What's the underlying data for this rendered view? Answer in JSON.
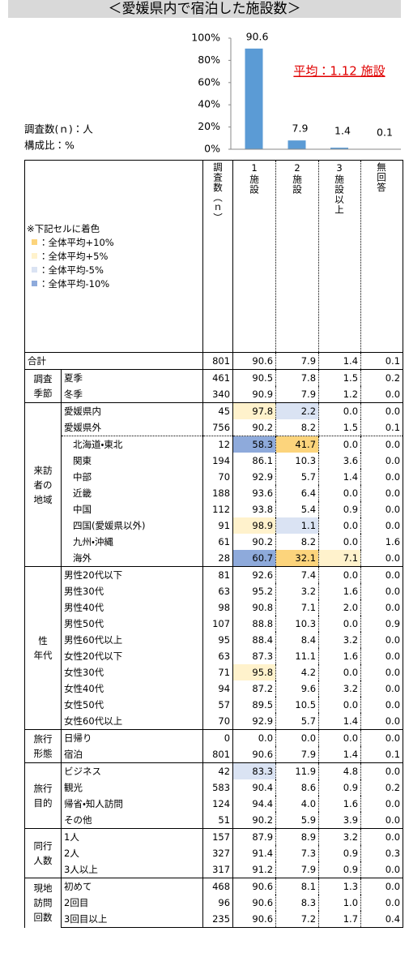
{
  "title": "＜愛媛県内で宿泊した施設数＞",
  "chart": {
    "type": "bar",
    "n_label": "調査数(ｎ)：人",
    "pct_label": "構成比：%",
    "annotation": "平均：1.12 施設",
    "values": [
      90.6,
      7.9,
      1.4,
      0.1
    ],
    "color": "#5b9bd5",
    "ylim": [
      0,
      100
    ],
    "yticks": [
      {
        "value": 0,
        "label": "0%"
      },
      {
        "value": 20,
        "label": "20%"
      },
      {
        "value": 40,
        "label": "40%"
      },
      {
        "value": 60,
        "label": "60%"
      },
      {
        "value": 80,
        "label": "80%"
      },
      {
        "value": 100,
        "label": "100%"
      }
    ]
  },
  "legend": {
    "note": "※下記セルに着色",
    "items": [
      {
        "label": "：全体平均+10%",
        "color": "#fcd47c"
      },
      {
        "label": "：全体平均+5%",
        "color": "#fff2cc"
      },
      {
        "label": "：全体平均-5%",
        "color": "#dae3f3"
      },
      {
        "label": "：全体平均-10%",
        "color": "#8eaadb"
      }
    ]
  },
  "table": {
    "columns": [
      "調査数（ｎ）",
      "1施設",
      "2施設",
      "3施設以上",
      "無回答"
    ],
    "groups": [
      {
        "label": "合計",
        "rows": [
          {
            "values": [
              "801",
              "90.6",
              "7.9",
              "1.4",
              "0.1"
            ]
          }
        ]
      },
      {
        "label": "調査\n季節",
        "rows": [
          {
            "label": "夏季",
            "values": [
              "461",
              "90.5",
              "7.8",
              "1.5",
              "0.2"
            ]
          },
          {
            "label": "冬季",
            "values": [
              "340",
              "90.9",
              "7.9",
              "1.2",
              "0.0"
            ]
          }
        ]
      },
      {
        "label": "来訪\n者の\n地域",
        "rows": [
          {
            "label": "愛媛県内",
            "values": [
              "45",
              "97.8",
              "2.2",
              "0.0",
              "0.0"
            ],
            "shade": [
              null,
              1,
              2,
              null,
              null
            ]
          },
          {
            "label": "愛媛県外",
            "values": [
              "756",
              "90.2",
              "8.2",
              "1.5",
              "0.1"
            ]
          },
          {
            "label": "北海道・東北",
            "indent": true,
            "values": [
              "12",
              "58.3",
              "41.7",
              "0.0",
              "0.0"
            ],
            "shade": [
              null,
              3,
              0,
              null,
              null
            ]
          },
          {
            "label": "関東",
            "indent": true,
            "values": [
              "194",
              "86.1",
              "10.3",
              "3.6",
              "0.0"
            ]
          },
          {
            "label": "中部",
            "indent": true,
            "values": [
              "70",
              "92.9",
              "5.7",
              "1.4",
              "0.0"
            ]
          },
          {
            "label": "近畿",
            "indent": true,
            "values": [
              "188",
              "93.6",
              "6.4",
              "0.0",
              "0.0"
            ]
          },
          {
            "label": "中国",
            "indent": true,
            "values": [
              "112",
              "93.8",
              "5.4",
              "0.9",
              "0.0"
            ]
          },
          {
            "label": "四国(愛媛県以外)",
            "indent": true,
            "values": [
              "91",
              "98.9",
              "1.1",
              "0.0",
              "0.0"
            ],
            "shade": [
              null,
              1,
              2,
              null,
              null
            ]
          },
          {
            "label": "九州・沖縄",
            "indent": true,
            "values": [
              "61",
              "90.2",
              "8.2",
              "0.0",
              "1.6"
            ]
          },
          {
            "label": "海外",
            "indent": true,
            "values": [
              "28",
              "60.7",
              "32.1",
              "7.1",
              "0.0"
            ],
            "shade": [
              null,
              3,
              0,
              1,
              null
            ]
          }
        ]
      },
      {
        "label": "性\n年代",
        "rows": [
          {
            "label": "男性20代以下",
            "values": [
              "81",
              "92.6",
              "7.4",
              "0.0",
              "0.0"
            ]
          },
          {
            "label": "男性30代",
            "values": [
              "63",
              "95.2",
              "3.2",
              "1.6",
              "0.0"
            ]
          },
          {
            "label": "男性40代",
            "values": [
              "98",
              "90.8",
              "7.1",
              "2.0",
              "0.0"
            ]
          },
          {
            "label": "男性50代",
            "values": [
              "107",
              "88.8",
              "10.3",
              "0.0",
              "0.9"
            ]
          },
          {
            "label": "男性60代以上",
            "values": [
              "95",
              "88.4",
              "8.4",
              "3.2",
              "0.0"
            ]
          },
          {
            "label": "女性20代以下",
            "values": [
              "63",
              "87.3",
              "11.1",
              "1.6",
              "0.0"
            ]
          },
          {
            "label": "女性30代",
            "values": [
              "71",
              "95.8",
              "4.2",
              "0.0",
              "0.0"
            ],
            "shade": [
              null,
              1,
              null,
              null,
              null
            ]
          },
          {
            "label": "女性40代",
            "values": [
              "94",
              "87.2",
              "9.6",
              "3.2",
              "0.0"
            ]
          },
          {
            "label": "女性50代",
            "values": [
              "57",
              "89.5",
              "10.5",
              "0.0",
              "0.0"
            ]
          },
          {
            "label": "女性60代以上",
            "values": [
              "70",
              "92.9",
              "5.7",
              "1.4",
              "0.0"
            ]
          }
        ]
      },
      {
        "label": "旅行\n形態",
        "rows": [
          {
            "label": "日帰り",
            "values": [
              "0",
              "0.0",
              "0.0",
              "0.0",
              "0.0"
            ]
          },
          {
            "label": "宿泊",
            "values": [
              "801",
              "90.6",
              "7.9",
              "1.4",
              "0.1"
            ]
          }
        ]
      },
      {
        "label": "旅行\n目的",
        "rows": [
          {
            "label": "ビジネス",
            "values": [
              "42",
              "83.3",
              "11.9",
              "4.8",
              "0.0"
            ],
            "shade": [
              null,
              2,
              null,
              null,
              null
            ]
          },
          {
            "label": "観光",
            "values": [
              "583",
              "90.4",
              "8.6",
              "0.9",
              "0.2"
            ]
          },
          {
            "label": "帰省・知人訪問",
            "values": [
              "124",
              "94.4",
              "4.0",
              "1.6",
              "0.0"
            ]
          },
          {
            "label": "その他",
            "values": [
              "51",
              "90.2",
              "5.9",
              "3.9",
              "0.0"
            ]
          }
        ]
      },
      {
        "label": "同行\n人数",
        "rows": [
          {
            "label": "1人",
            "values": [
              "157",
              "87.9",
              "8.9",
              "3.2",
              "0.0"
            ]
          },
          {
            "label": "2人",
            "values": [
              "327",
              "91.4",
              "7.3",
              "0.9",
              "0.3"
            ]
          },
          {
            "label": "3人以上",
            "values": [
              "317",
              "91.2",
              "7.9",
              "0.9",
              "0.0"
            ]
          }
        ]
      },
      {
        "label": "現地\n訪問\n回数",
        "rows": [
          {
            "label": "初めて",
            "values": [
              "468",
              "90.6",
              "8.1",
              "1.3",
              "0.0"
            ]
          },
          {
            "label": "2回目",
            "values": [
              "96",
              "90.6",
              "8.3",
              "1.0",
              "0.0"
            ]
          },
          {
            "label": "3回目以上",
            "values": [
              "235",
              "90.6",
              "7.2",
              "1.7",
              "0.4"
            ]
          }
        ]
      }
    ]
  }
}
